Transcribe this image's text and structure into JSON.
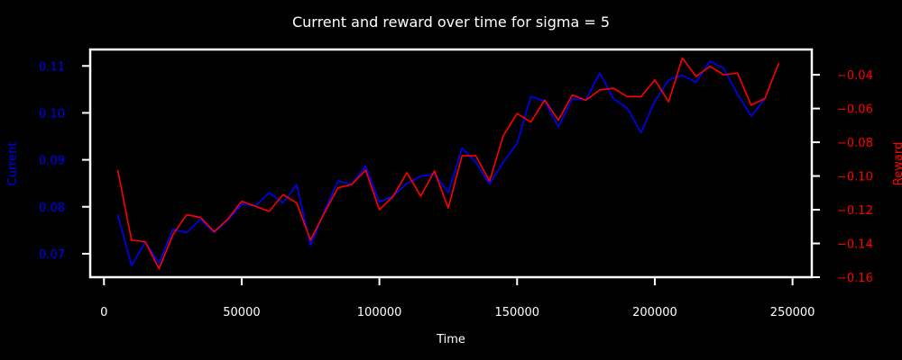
{
  "chart_data": {
    "type": "line",
    "title": "Current and reward over time for sigma = 5",
    "xlabel": "Time",
    "ylabel_left": "Current",
    "ylabel_right": "Reward",
    "xlim": [
      -5000,
      257000
    ],
    "ylim_left": [
      0.065,
      0.1135
    ],
    "ylim_right": [
      -0.16,
      -0.025
    ],
    "x_ticks": [
      0,
      50000,
      100000,
      150000,
      200000,
      250000
    ],
    "y_ticks_left": [
      0.07,
      0.08,
      0.09,
      0.1,
      0.11
    ],
    "y_ticks_left_labels": [
      "0.07",
      "0.08",
      "0.09",
      "0.10",
      "0.11"
    ],
    "y_ticks_right": [
      -0.16,
      -0.14,
      -0.12,
      -0.1,
      -0.08,
      -0.06,
      -0.04
    ],
    "y_ticks_right_labels": [
      "−0.16",
      "−0.14",
      "−0.12",
      "−0.10",
      "−0.08",
      "−0.06",
      "−0.04"
    ],
    "grid": false,
    "colors": {
      "current": "#0000ff",
      "reward": "#ff0000",
      "background": "#000000",
      "foreground": "#ffffff"
    },
    "x": [
      5000,
      10000,
      15000,
      20000,
      25000,
      30000,
      35000,
      40000,
      45000,
      50000,
      55000,
      60000,
      65000,
      70000,
      75000,
      80000,
      85000,
      90000,
      95000,
      100000,
      105000,
      110000,
      115000,
      120000,
      125000,
      130000,
      135000,
      140000,
      145000,
      150000,
      155000,
      160000,
      165000,
      170000,
      175000,
      180000,
      185000,
      190000,
      195000,
      200000,
      205000,
      210000,
      215000,
      220000,
      225000,
      230000,
      235000,
      240000,
      245000
    ],
    "series": [
      {
        "axis": "left",
        "color": "#0000ff",
        "values": [
          0.0783,
          0.0675,
          0.0725,
          0.068,
          0.0752,
          0.0745,
          0.0773,
          0.0745,
          0.0772,
          0.0805,
          0.0802,
          0.083,
          0.0808,
          0.0847,
          0.0718,
          0.079,
          0.0855,
          0.0848,
          0.0887,
          0.081,
          0.0823,
          0.085,
          0.0865,
          0.087,
          0.083,
          0.0925,
          0.0895,
          0.0848,
          0.0895,
          0.0935,
          0.1035,
          0.1025,
          0.097,
          0.103,
          0.1028,
          0.1085,
          0.103,
          0.101,
          0.0958,
          0.1025,
          0.107,
          0.108,
          0.1065,
          0.111,
          0.1095,
          0.104,
          0.0993,
          0.103,
          null
        ]
      },
      {
        "axis": "right",
        "color": "#ff0000",
        "values": [
          -0.0965,
          -0.138,
          -0.139,
          -0.155,
          -0.135,
          -0.123,
          -0.1245,
          -0.133,
          -0.1255,
          -0.115,
          -0.118,
          -0.121,
          -0.111,
          -0.116,
          -0.138,
          -0.122,
          -0.107,
          -0.105,
          -0.0965,
          -0.12,
          -0.112,
          -0.098,
          -0.112,
          -0.097,
          -0.119,
          -0.088,
          -0.088,
          -0.103,
          -0.076,
          -0.063,
          -0.068,
          -0.055,
          -0.067,
          -0.052,
          -0.055,
          -0.049,
          -0.048,
          -0.053,
          -0.053,
          -0.043,
          -0.056,
          -0.03,
          -0.041,
          -0.035,
          -0.04,
          -0.039,
          -0.058,
          -0.054,
          -0.033
        ]
      }
    ]
  }
}
